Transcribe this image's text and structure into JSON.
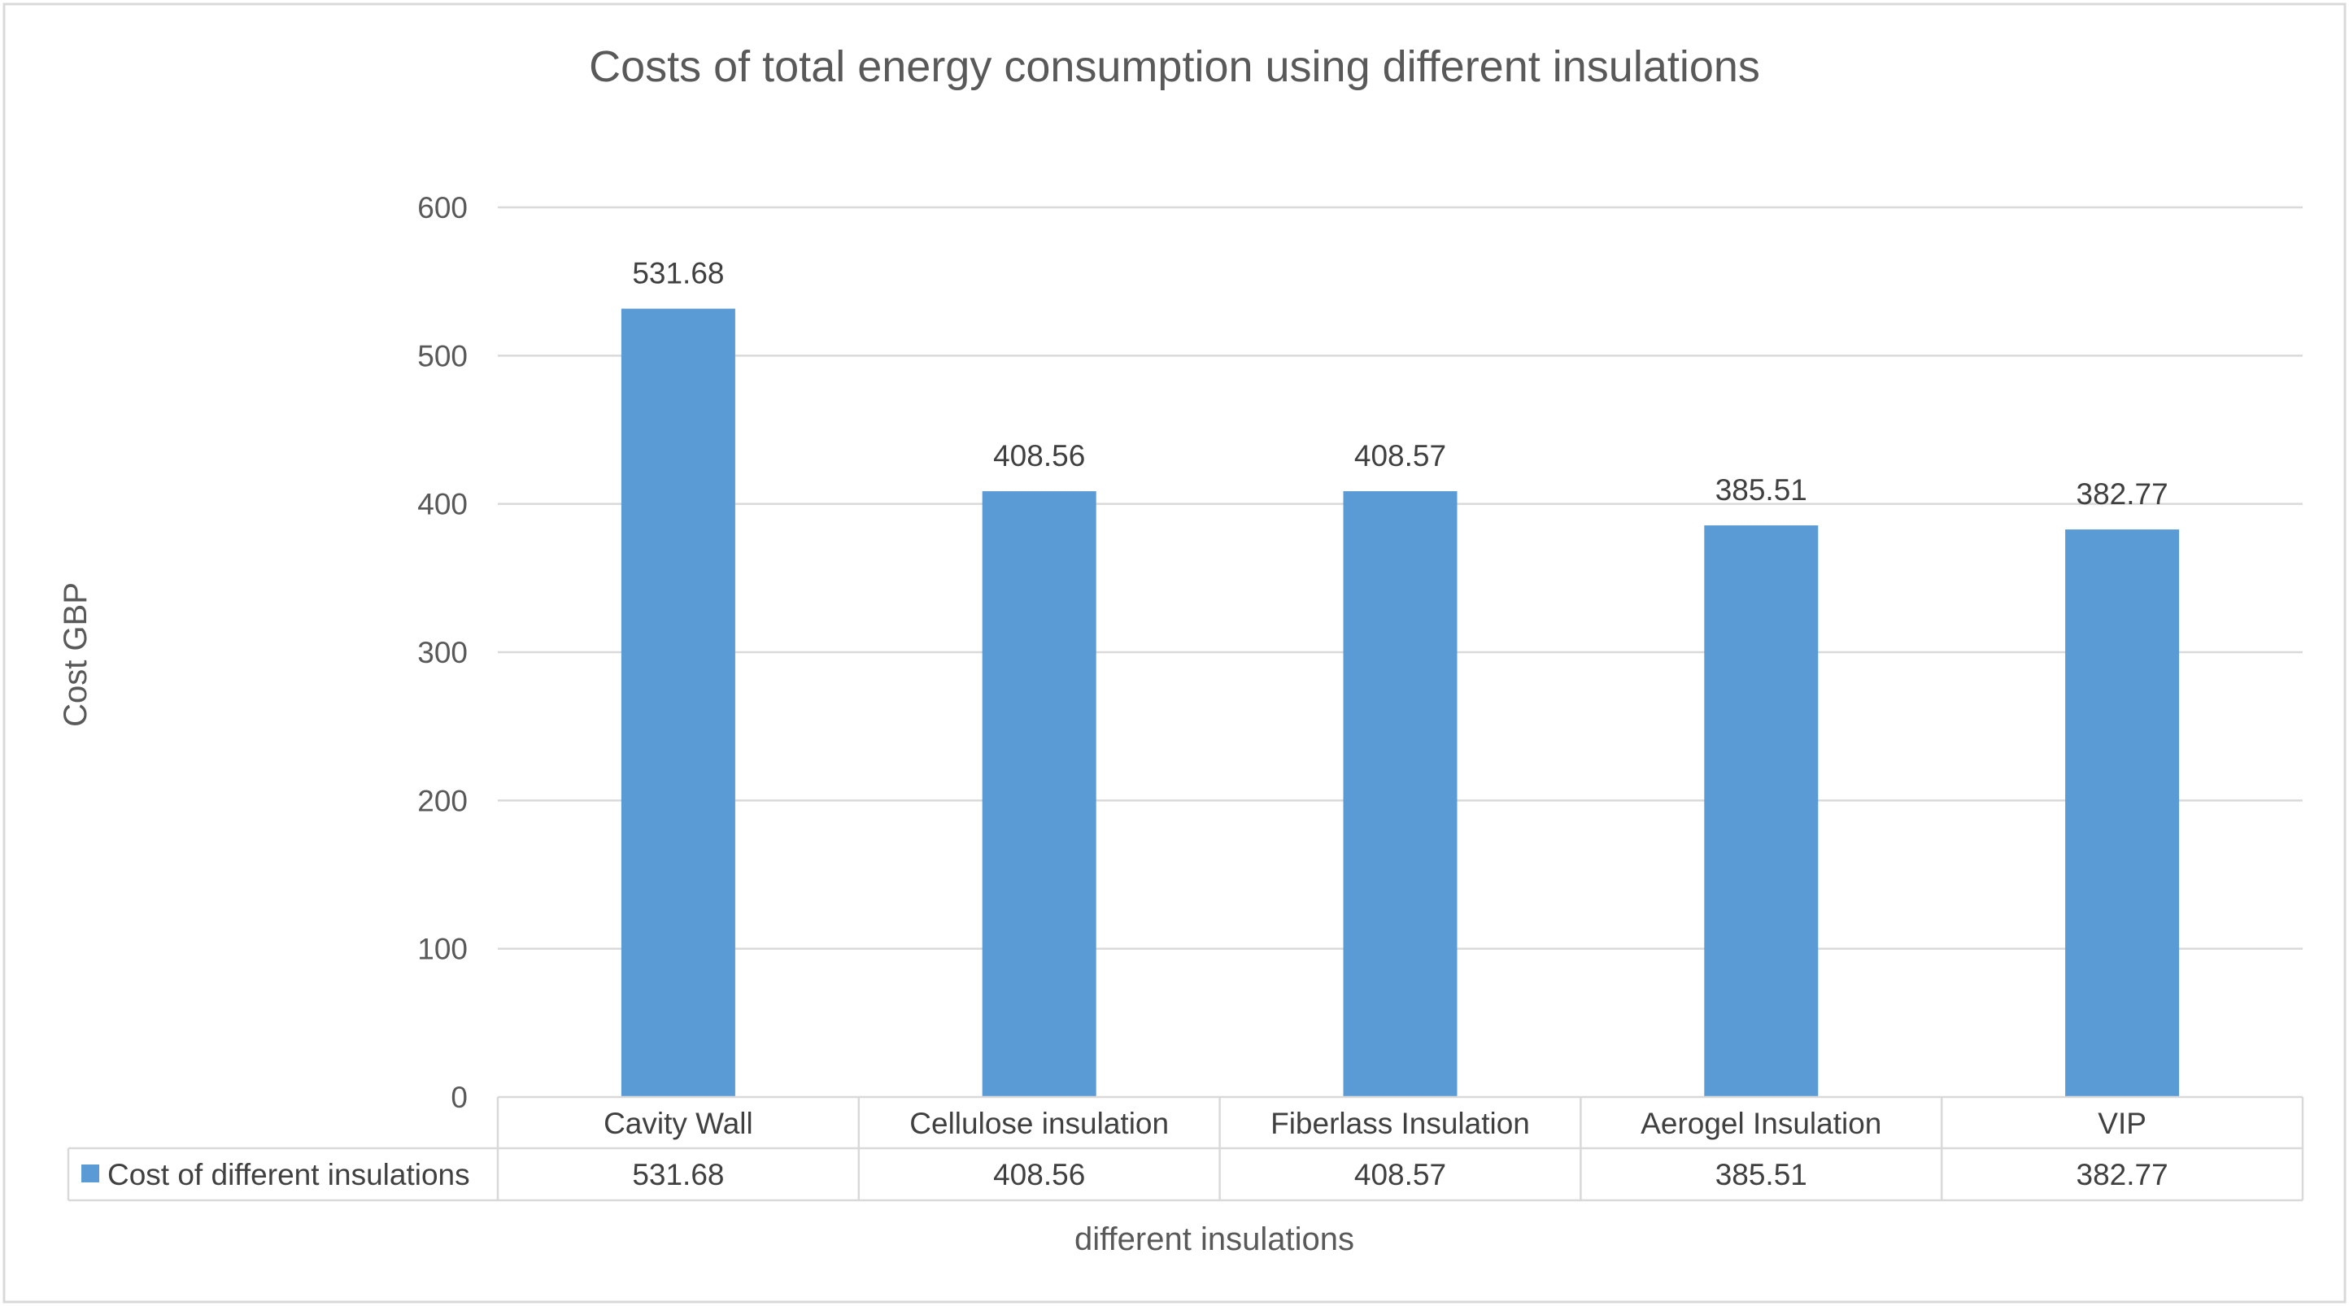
{
  "chart_data": {
    "type": "bar",
    "title": "Costs of total energy consumption using different insulations",
    "xlabel": "different insulations",
    "ylabel": "Cost GBP",
    "categories": [
      "Cavity Wall",
      "Cellulose insulation",
      "Fiberlass Insulation",
      "Aerogel Insulation",
      "VIP"
    ],
    "series": [
      {
        "name": "Cost of different insulations",
        "values": [
          531.68,
          408.56,
          408.57,
          385.51,
          382.77
        ],
        "color": "#5b9bd5"
      }
    ],
    "value_labels": [
      "531.68",
      "408.56",
      "408.57",
      "385.51",
      "382.77"
    ],
    "ylim": [
      0,
      600
    ],
    "yticks": [
      0,
      100,
      200,
      300,
      400,
      500,
      600
    ],
    "grid": true,
    "legend": "data-table",
    "data_table": true
  }
}
